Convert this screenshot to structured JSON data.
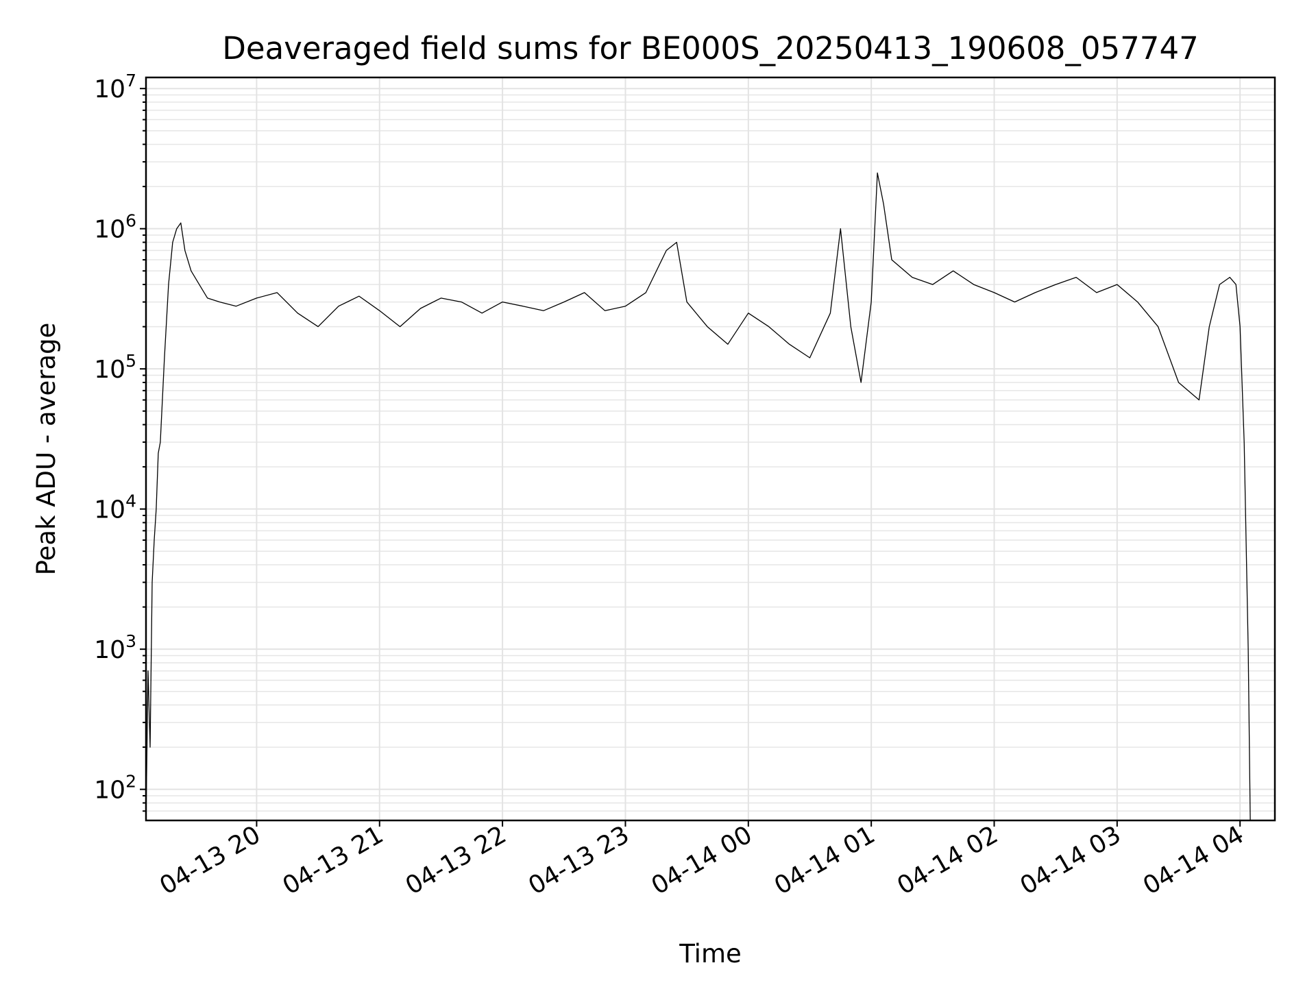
{
  "chart_data": {
    "type": "line",
    "title": "Deaveraged field sums for BE000S_20250413_190608_057747",
    "xlabel": "Time",
    "ylabel": "Peak ADU - average",
    "y_scale": "log",
    "ylim": [
      60,
      12000000
    ],
    "xlim": [
      "2025-04-13T19:06",
      "2025-04-14T04:17"
    ],
    "grid": "major and minor",
    "x_ticks": [
      {
        "t": "2025-04-13T20:00",
        "label": "04-13 20"
      },
      {
        "t": "2025-04-13T21:00",
        "label": "04-13 21"
      },
      {
        "t": "2025-04-13T22:00",
        "label": "04-13 22"
      },
      {
        "t": "2025-04-13T23:00",
        "label": "04-13 23"
      },
      {
        "t": "2025-04-14T00:00",
        "label": "04-14 00"
      },
      {
        "t": "2025-04-14T01:00",
        "label": "04-14 01"
      },
      {
        "t": "2025-04-14T02:00",
        "label": "04-14 02"
      },
      {
        "t": "2025-04-14T03:00",
        "label": "04-14 03"
      },
      {
        "t": "2025-04-14T04:00",
        "label": "04-14 04"
      }
    ],
    "y_ticks": [
      {
        "value": 100,
        "base": "10",
        "exp": "2"
      },
      {
        "value": 1000,
        "base": "10",
        "exp": "3"
      },
      {
        "value": 10000,
        "base": "10",
        "exp": "4"
      },
      {
        "value": 100000,
        "base": "10",
        "exp": "5"
      },
      {
        "value": 1000000,
        "base": "10",
        "exp": "6"
      },
      {
        "value": 10000000,
        "base": "10",
        "exp": "7"
      }
    ],
    "series": [
      {
        "color": "#000000",
        "points": [
          [
            "2025-04-13T19:06",
            60
          ],
          [
            "2025-04-13T19:07",
            700
          ],
          [
            "2025-04-13T19:08",
            200
          ],
          [
            "2025-04-13T19:09",
            3000
          ],
          [
            "2025-04-13T19:10",
            6000
          ],
          [
            "2025-04-13T19:11",
            10000
          ],
          [
            "2025-04-13T19:12",
            25000
          ],
          [
            "2025-04-13T19:13",
            30000
          ],
          [
            "2025-04-13T19:15",
            120000
          ],
          [
            "2025-04-13T19:17",
            400000
          ],
          [
            "2025-04-13T19:19",
            800000
          ],
          [
            "2025-04-13T19:21",
            1000000
          ],
          [
            "2025-04-13T19:23",
            1100000
          ],
          [
            "2025-04-13T19:25",
            700000
          ],
          [
            "2025-04-13T19:28",
            500000
          ],
          [
            "2025-04-13T19:32",
            400000
          ],
          [
            "2025-04-13T19:36",
            320000
          ],
          [
            "2025-04-13T19:42",
            300000
          ],
          [
            "2025-04-13T19:50",
            280000
          ],
          [
            "2025-04-13T20:00",
            320000
          ],
          [
            "2025-04-13T20:10",
            350000
          ],
          [
            "2025-04-13T20:20",
            250000
          ],
          [
            "2025-04-13T20:30",
            200000
          ],
          [
            "2025-04-13T20:40",
            280000
          ],
          [
            "2025-04-13T20:50",
            330000
          ],
          [
            "2025-04-13T21:00",
            260000
          ],
          [
            "2025-04-13T21:10",
            200000
          ],
          [
            "2025-04-13T21:20",
            270000
          ],
          [
            "2025-04-13T21:30",
            320000
          ],
          [
            "2025-04-13T21:40",
            300000
          ],
          [
            "2025-04-13T21:50",
            250000
          ],
          [
            "2025-04-13T22:00",
            300000
          ],
          [
            "2025-04-13T22:10",
            280000
          ],
          [
            "2025-04-13T22:20",
            260000
          ],
          [
            "2025-04-13T22:30",
            300000
          ],
          [
            "2025-04-13T22:40",
            350000
          ],
          [
            "2025-04-13T22:50",
            260000
          ],
          [
            "2025-04-13T23:00",
            280000
          ],
          [
            "2025-04-13T23:10",
            350000
          ],
          [
            "2025-04-13T23:20",
            700000
          ],
          [
            "2025-04-13T23:25",
            800000
          ],
          [
            "2025-04-13T23:30",
            300000
          ],
          [
            "2025-04-13T23:40",
            200000
          ],
          [
            "2025-04-13T23:50",
            150000
          ],
          [
            "2025-04-14T00:00",
            250000
          ],
          [
            "2025-04-14T00:10",
            200000
          ],
          [
            "2025-04-14T00:20",
            150000
          ],
          [
            "2025-04-14T00:30",
            120000
          ],
          [
            "2025-04-14T00:40",
            250000
          ],
          [
            "2025-04-14T00:45",
            1000000
          ],
          [
            "2025-04-14T00:50",
            200000
          ],
          [
            "2025-04-14T00:55",
            80000
          ],
          [
            "2025-04-14T01:00",
            300000
          ],
          [
            "2025-04-14T01:03",
            2500000
          ],
          [
            "2025-04-14T01:06",
            1500000
          ],
          [
            "2025-04-14T01:10",
            600000
          ],
          [
            "2025-04-14T01:20",
            450000
          ],
          [
            "2025-04-14T01:30",
            400000
          ],
          [
            "2025-04-14T01:40",
            500000
          ],
          [
            "2025-04-14T01:50",
            400000
          ],
          [
            "2025-04-14T02:00",
            350000
          ],
          [
            "2025-04-14T02:10",
            300000
          ],
          [
            "2025-04-14T02:20",
            350000
          ],
          [
            "2025-04-14T02:30",
            400000
          ],
          [
            "2025-04-14T02:40",
            450000
          ],
          [
            "2025-04-14T02:50",
            350000
          ],
          [
            "2025-04-14T03:00",
            400000
          ],
          [
            "2025-04-14T03:10",
            300000
          ],
          [
            "2025-04-14T03:20",
            200000
          ],
          [
            "2025-04-14T03:30",
            80000
          ],
          [
            "2025-04-14T03:40",
            60000
          ],
          [
            "2025-04-14T03:45",
            200000
          ],
          [
            "2025-04-14T03:50",
            400000
          ],
          [
            "2025-04-14T03:55",
            450000
          ],
          [
            "2025-04-14T03:58",
            400000
          ],
          [
            "2025-04-14T04:00",
            200000
          ],
          [
            "2025-04-14T04:02",
            30000
          ],
          [
            "2025-04-14T04:04",
            1000
          ],
          [
            "2025-04-14T04:05",
            60
          ]
        ]
      }
    ]
  }
}
